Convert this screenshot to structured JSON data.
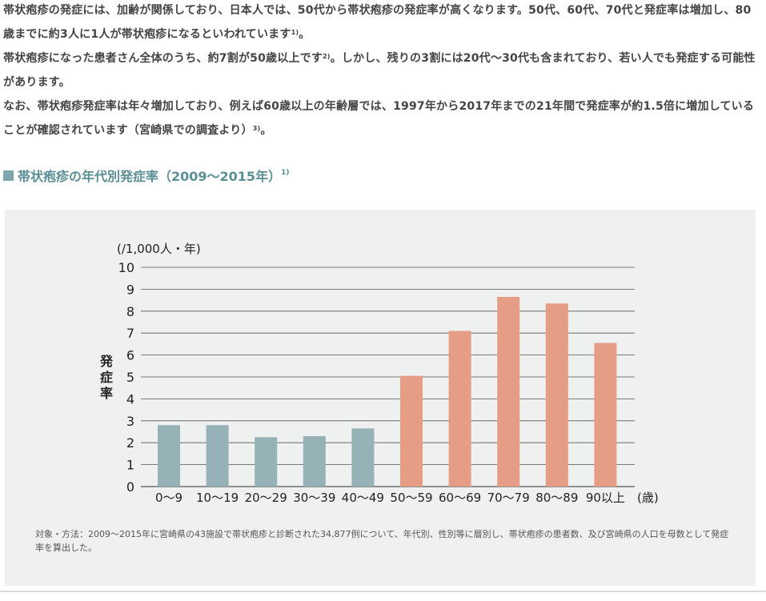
{
  "paragraphs": {
    "p1_text": "帯状疱疹の発症には、加齢が関係しており、日本人では、50代から帯状疱疹の発症率が高くなります。50代、60代、70代と発症率は増加し、80歳までに約3人に1人が帯状疱疹になるといわれています",
    "p1_ref": "1)",
    "p1_end": "。",
    "p2_text": "帯状疱疹になった患者さん全体のうち、約7割が50歳以上です",
    "p2_ref": "2)",
    "p2_end": "。しかし、残りの3割には20代～30代も含まれており、若い人でも発症する可能性があります。",
    "p3_text": "なお、帯状疱疹発症率は年々増加しており、例えば60歳以上の年齢層では、1997年から2017年までの21年間で発症率が約1.5倍に増加していることが確認されています（宮崎県での調査より）",
    "p3_ref": "3)",
    "p3_end": "。"
  },
  "section": {
    "title": "帯状疱疹の年代別発症率（2009～2015年）",
    "ref": "1)"
  },
  "note": "対象・方法：2009～2015年に宮崎県の43施設で帯状疱疹と診断された34,877例について、年代別、性別等に層別し、帯状疱疹の患者数、及び宮崎県の人口を母数として発症率を算出した。",
  "chart_data": {
    "type": "bar",
    "categories": [
      "0～9",
      "10～19",
      "20～29",
      "30～39",
      "40～49",
      "50～59",
      "60～69",
      "70～79",
      "80～89",
      "90以上"
    ],
    "values": [
      2.8,
      2.8,
      2.25,
      2.3,
      2.65,
      5.05,
      7.1,
      8.65,
      8.35,
      6.55
    ],
    "ylabel": "発症率",
    "yunit": "(/1,000人・年)",
    "xunit": "(歳)",
    "ylim": [
      0,
      10
    ],
    "yticks": [
      0,
      1,
      2,
      3,
      4,
      5,
      6,
      7,
      8,
      9,
      10
    ],
    "grid": true,
    "colors": {
      "under_50": "#96b2b6",
      "50_and_over": "#e69d86",
      "grid": "#555555",
      "panel": "#eef1f0",
      "title_accent": "#5b8f96"
    }
  }
}
